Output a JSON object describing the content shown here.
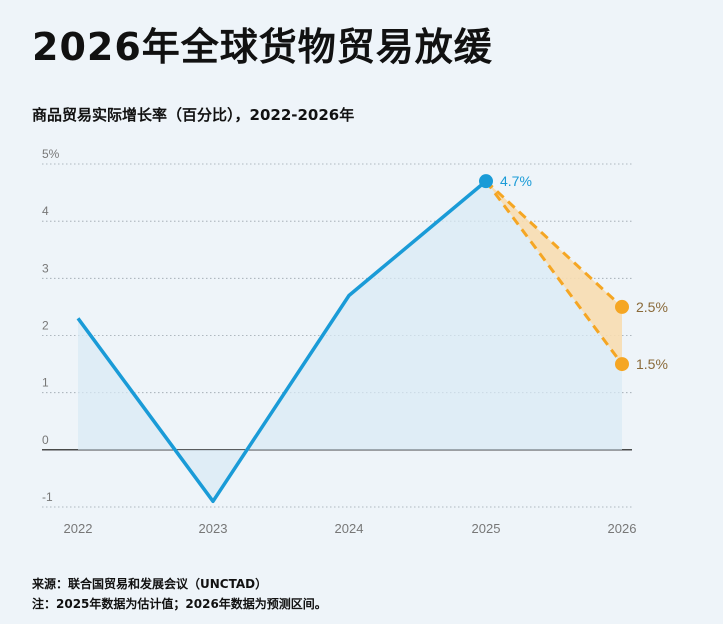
{
  "title": "2026年全球货物贸易放缓",
  "subtitle": "商品贸易实际增长率（百分比），2022-2026年",
  "source_line": "来源：联合国贸易和发展会议（UNCTAD）",
  "note_line": "注：2025年数据为估计值；2026年数据为预测区间。",
  "colors": {
    "line": "#1a9bd7",
    "area": "#d9e9f5",
    "forecast": "#f5a623",
    "forecast_fill": "#f7ddb0",
    "forecast_label": "#8a6a3a",
    "axis_text": "#777777"
  },
  "chart_data": {
    "type": "line",
    "x": [
      "2022",
      "2023",
      "2024",
      "2025"
    ],
    "y": [
      2.3,
      -0.9,
      2.7,
      4.7
    ],
    "ylim": [
      -1,
      5
    ],
    "yticks": [
      "-1",
      "0",
      "1",
      "2",
      "3",
      "4",
      "5%"
    ],
    "ytick_values": [
      -1,
      0,
      1,
      2,
      3,
      4,
      5
    ],
    "xticks": [
      "2022",
      "2023",
      "2024",
      "2025",
      "2026"
    ],
    "grid": true,
    "annotations": {
      "last_actual": {
        "x": "2025",
        "y": 4.7,
        "label": "4.7%"
      }
    },
    "forecast": {
      "x": "2026",
      "high": 2.5,
      "low": 1.5,
      "high_label": "2.5%",
      "low_label": "1.5%"
    }
  }
}
